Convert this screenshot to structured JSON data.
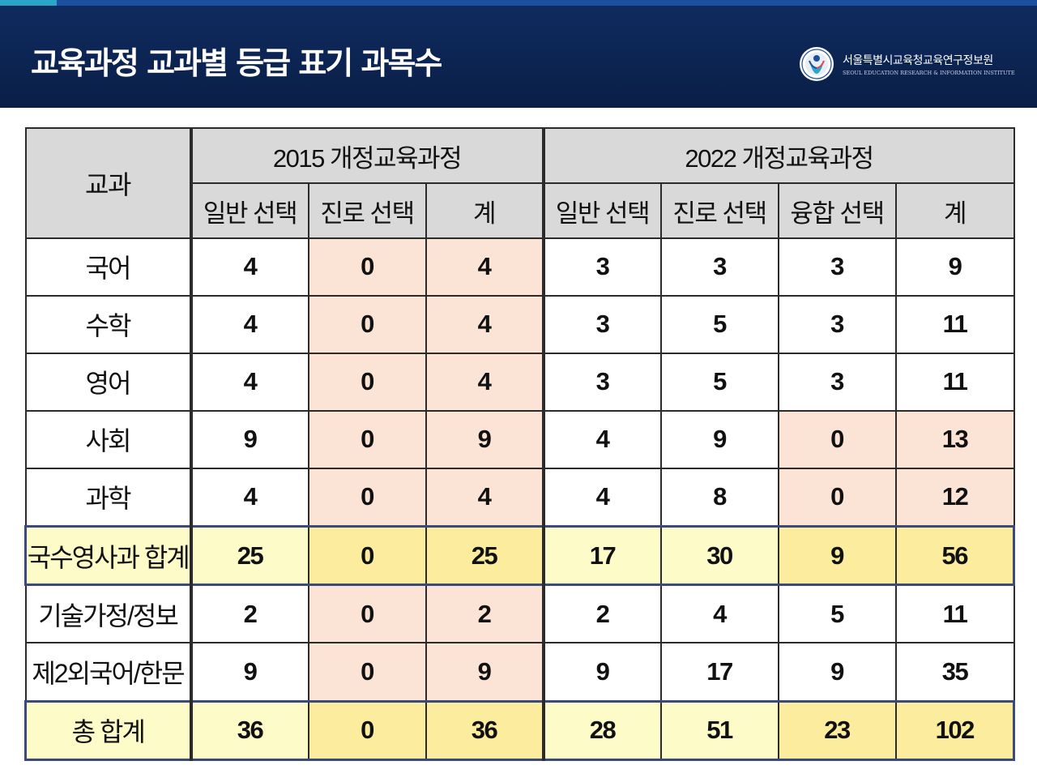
{
  "header": {
    "title": "교육과정 교과별 등급 표기 과목수",
    "org_name": "서울특별시교육청교육연구정보원",
    "org_name_en": "SEOUL EDUCATION RESEARCH & INFORMATION INSTITUTE"
  },
  "table": {
    "subject_header": "교과",
    "group_2015": "2015 개정교육과정",
    "group_2022": "2022 개정교육과정",
    "sub_headers_2015": [
      "일반 선택",
      "진로 선택",
      "계"
    ],
    "sub_headers_2022": [
      "일반 선택",
      "진로 선택",
      "융합 선택",
      "계"
    ],
    "rows": [
      {
        "subject": "국어",
        "v2015": [
          "4",
          "0",
          "4"
        ],
        "v2022": [
          "3",
          "3",
          "3",
          "9"
        ]
      },
      {
        "subject": "수학",
        "v2015": [
          "4",
          "0",
          "4"
        ],
        "v2022": [
          "3",
          "5",
          "3",
          "11"
        ]
      },
      {
        "subject": "영어",
        "v2015": [
          "4",
          "0",
          "4"
        ],
        "v2022": [
          "3",
          "5",
          "3",
          "11"
        ]
      },
      {
        "subject": "사회",
        "v2015": [
          "9",
          "0",
          "9"
        ],
        "v2022": [
          "4",
          "9",
          "0",
          "13"
        ]
      },
      {
        "subject": "과학",
        "v2015": [
          "4",
          "0",
          "4"
        ],
        "v2022": [
          "4",
          "8",
          "0",
          "12"
        ]
      },
      {
        "subject": "국수영사과 합계",
        "v2015": [
          "25",
          "0",
          "25"
        ],
        "v2022": [
          "17",
          "30",
          "9",
          "56"
        ]
      },
      {
        "subject": "기술가정/정보",
        "v2015": [
          "2",
          "0",
          "2"
        ],
        "v2022": [
          "2",
          "4",
          "5",
          "11"
        ]
      },
      {
        "subject": "제2외국어/한문",
        "v2015": [
          "9",
          "0",
          "9"
        ],
        "v2022": [
          "9",
          "17",
          "9",
          "35"
        ]
      },
      {
        "subject": "총 합계",
        "v2015": [
          "36",
          "0",
          "36"
        ],
        "v2022": [
          "28",
          "51",
          "23",
          "102"
        ]
      }
    ]
  },
  "colors": {
    "header_bg": "#0c2452",
    "peach": "#fbe4d6",
    "light_yellow": "#fdfcc9",
    "yellow": "#fbec9e",
    "header_cell_bg": "#d9d9d9"
  }
}
